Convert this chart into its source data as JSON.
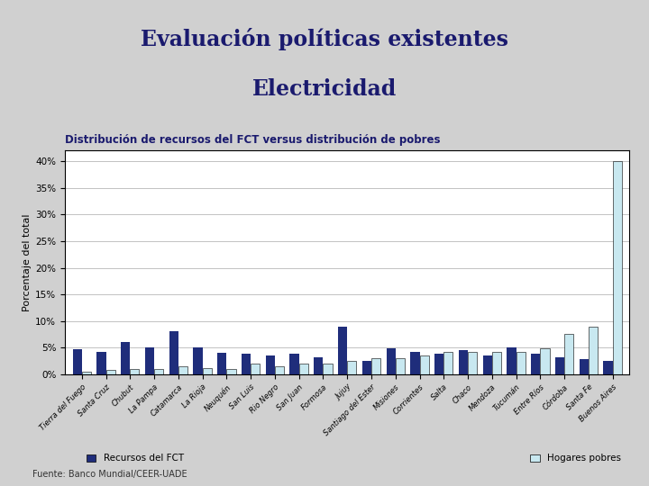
{
  "title_line1": "Evaluación políticas existentes",
  "title_line2": "Electricidad",
  "subtitle": "Distribución de recursos del FCT versus distribución de pobres",
  "ylabel": "Porcentaje del total",
  "source": "Fuente: Banco Mundial/CEER-UADE",
  "legend_fct": "Recursos del FCT",
  "legend_poor": "Hogares pobres",
  "categories": [
    "Tierra del Fuego",
    "Santa Cruz",
    "Chubut",
    "La Pampa",
    "Catamarca",
    "La Rioja",
    "Neuquén",
    "San Luis",
    "Rio Negro",
    "San Juan",
    "Formosa",
    "Jujuy",
    "Santiago del Ester",
    "Misiones",
    "Corrientes",
    "Salta",
    "Chaco",
    "Mendoza",
    "Tucumán",
    "Entre Ríos",
    "Córdoba",
    "Santa Fe",
    "Buenos Aires"
  ],
  "fct": [
    4.7,
    4.2,
    6.0,
    5.0,
    8.0,
    5.0,
    4.0,
    3.8,
    3.5,
    3.8,
    3.2,
    9.0,
    2.5,
    4.8,
    4.2,
    3.8,
    4.5,
    3.5,
    5.0,
    3.8,
    3.2,
    2.8,
    2.5
  ],
  "poor": [
    0.5,
    0.8,
    1.0,
    1.0,
    1.5,
    1.2,
    1.0,
    2.0,
    1.5,
    2.0,
    2.0,
    2.5,
    3.0,
    3.0,
    3.5,
    4.2,
    4.2,
    4.2,
    4.2,
    4.8,
    7.5,
    9.0,
    40.0
  ],
  "fct_color": "#1F2D7B",
  "poor_color": "#C8E8F0",
  "bg_color_top": "#C8C8C8",
  "bg_color_bottom": "#D0D0D0",
  "chart_bg": "#FFFFFF",
  "title_color": "#1a1a6e",
  "subtitle_color": "#1a1a6e",
  "dark_bar_color": "#3a3a5c",
  "ylim": [
    0,
    0.42
  ],
  "yticks": [
    0,
    0.05,
    0.1,
    0.15,
    0.2,
    0.25,
    0.3,
    0.35,
    0.4
  ],
  "ytick_labels": [
    "0%",
    "5%",
    "10%",
    "15%",
    "20%",
    "25%",
    "30%",
    "35%",
    "40%"
  ]
}
